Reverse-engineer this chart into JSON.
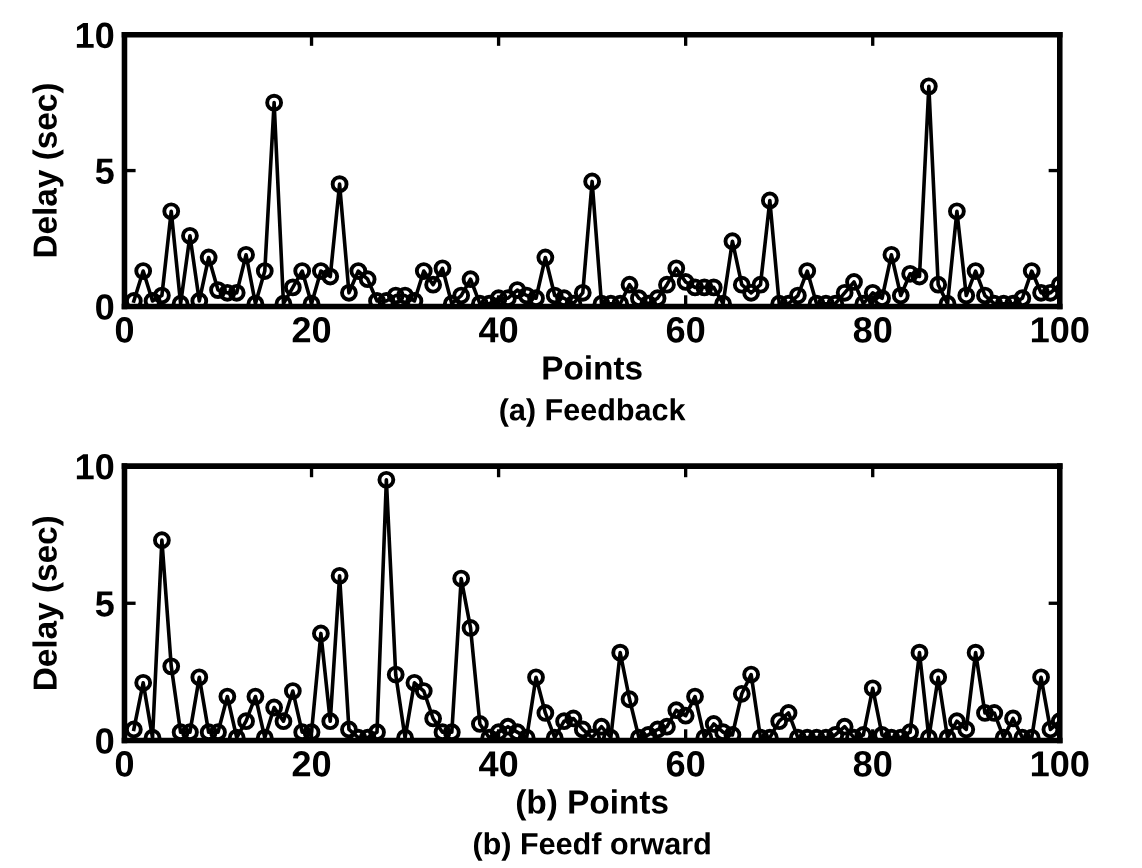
{
  "chart_data": [
    {
      "type": "line",
      "xlabel": "Points",
      "ylabel": "Delay (sec)",
      "annotations": [
        "(a) Feedback"
      ],
      "xlim": [
        0,
        100
      ],
      "ylim": [
        0,
        10
      ],
      "xticks": [
        0,
        20,
        40,
        60,
        80,
        100
      ],
      "yticks": [
        0,
        5,
        10
      ],
      "grid": false,
      "marker": "circle",
      "line_style": "solid",
      "x": [
        1,
        2,
        3,
        4,
        5,
        6,
        7,
        8,
        9,
        10,
        11,
        12,
        13,
        14,
        15,
        16,
        17,
        18,
        19,
        20,
        21,
        22,
        23,
        24,
        25,
        26,
        27,
        28,
        29,
        30,
        31,
        32,
        33,
        34,
        35,
        36,
        37,
        38,
        39,
        40,
        41,
        42,
        43,
        44,
        45,
        46,
        47,
        48,
        49,
        50,
        51,
        52,
        53,
        54,
        55,
        56,
        57,
        58,
        59,
        60,
        61,
        62,
        63,
        64,
        65,
        66,
        67,
        68,
        69,
        70,
        71,
        72,
        73,
        74,
        75,
        76,
        77,
        78,
        79,
        80,
        81,
        82,
        83,
        84,
        85,
        86,
        87,
        88,
        89,
        90,
        91,
        92,
        93,
        94,
        95,
        96,
        97,
        98,
        99,
        100
      ],
      "series": [
        {
          "color": "#000000",
          "values": [
            0.2,
            1.3,
            0.2,
            0.4,
            3.5,
            0.1,
            2.6,
            0.2,
            1.8,
            0.6,
            0.5,
            0.5,
            1.9,
            0.1,
            1.3,
            7.5,
            0.1,
            0.7,
            1.3,
            0.1,
            1.3,
            1.1,
            4.5,
            0.5,
            1.3,
            1.0,
            0.2,
            0.2,
            0.4,
            0.4,
            0.2,
            1.3,
            0.8,
            1.4,
            0.1,
            0.4,
            1.0,
            0.1,
            0.1,
            0.3,
            0.3,
            0.6,
            0.4,
            0.3,
            1.8,
            0.4,
            0.3,
            0.1,
            0.5,
            4.6,
            0.1,
            0.1,
            0.1,
            0.8,
            0.3,
            0.1,
            0.3,
            0.8,
            1.4,
            0.9,
            0.7,
            0.7,
            0.7,
            0.1,
            2.4,
            0.8,
            0.5,
            0.8,
            3.9,
            0.1,
            0.1,
            0.4,
            1.3,
            0.1,
            0.1,
            0.1,
            0.5,
            0.9,
            0.1,
            0.5,
            0.3,
            1.9,
            0.4,
            1.2,
            1.1,
            8.1,
            0.8,
            0.1,
            3.5,
            0.4,
            1.3,
            0.4,
            0.1,
            0.1,
            0.1,
            0.3,
            1.3,
            0.5,
            0.5,
            0.8
          ]
        }
      ]
    },
    {
      "type": "line",
      "xlabel": "(b) Points",
      "ylabel": "Delay (sec)",
      "annotations": [
        "(b) Feedf orward"
      ],
      "xlim": [
        0,
        100
      ],
      "ylim": [
        0,
        10
      ],
      "xticks": [
        0,
        20,
        40,
        60,
        80,
        100
      ],
      "yticks": [
        0,
        5,
        10
      ],
      "grid": false,
      "marker": "circle",
      "line_style": "solid",
      "x": [
        1,
        2,
        3,
        4,
        5,
        6,
        7,
        8,
        9,
        10,
        11,
        12,
        13,
        14,
        15,
        16,
        17,
        18,
        19,
        20,
        21,
        22,
        23,
        24,
        25,
        26,
        27,
        28,
        29,
        30,
        31,
        32,
        33,
        34,
        35,
        36,
        37,
        38,
        39,
        40,
        41,
        42,
        43,
        44,
        45,
        46,
        47,
        48,
        49,
        50,
        51,
        52,
        53,
        54,
        55,
        56,
        57,
        58,
        59,
        60,
        61,
        62,
        63,
        64,
        65,
        66,
        67,
        68,
        69,
        70,
        71,
        72,
        73,
        74,
        75,
        76,
        77,
        78,
        79,
        80,
        81,
        82,
        83,
        84,
        85,
        86,
        87,
        88,
        89,
        90,
        91,
        92,
        93,
        94,
        95,
        96,
        97,
        98,
        99,
        100
      ],
      "series": [
        {
          "color": "#000000",
          "values": [
            0.4,
            2.1,
            0.1,
            7.3,
            2.7,
            0.3,
            0.3,
            2.3,
            0.3,
            0.3,
            1.6,
            0.1,
            0.7,
            1.6,
            0.1,
            1.2,
            0.7,
            1.8,
            0.3,
            0.3,
            3.9,
            0.7,
            6.0,
            0.4,
            0.1,
            0.1,
            0.3,
            9.5,
            2.4,
            0.1,
            2.1,
            1.8,
            0.8,
            0.3,
            0.3,
            5.9,
            4.1,
            0.6,
            0.1,
            0.3,
            0.5,
            0.3,
            0.1,
            2.3,
            1.0,
            0.1,
            0.7,
            0.8,
            0.4,
            0.1,
            0.5,
            0.1,
            3.2,
            1.5,
            0.1,
            0.2,
            0.4,
            0.5,
            1.1,
            0.9,
            1.6,
            0.1,
            0.6,
            0.3,
            0.2,
            1.7,
            2.4,
            0.1,
            0.1,
            0.7,
            1.0,
            0.1,
            0.1,
            0.1,
            0.1,
            0.2,
            0.5,
            0.1,
            0.2,
            1.9,
            0.2,
            0.1,
            0.1,
            0.3,
            3.2,
            0.1,
            2.3,
            0.1,
            0.7,
            0.4,
            3.2,
            1.0,
            1.0,
            0.1,
            0.8,
            0.1,
            0.1,
            2.3,
            0.4,
            0.7
          ]
        }
      ]
    }
  ]
}
